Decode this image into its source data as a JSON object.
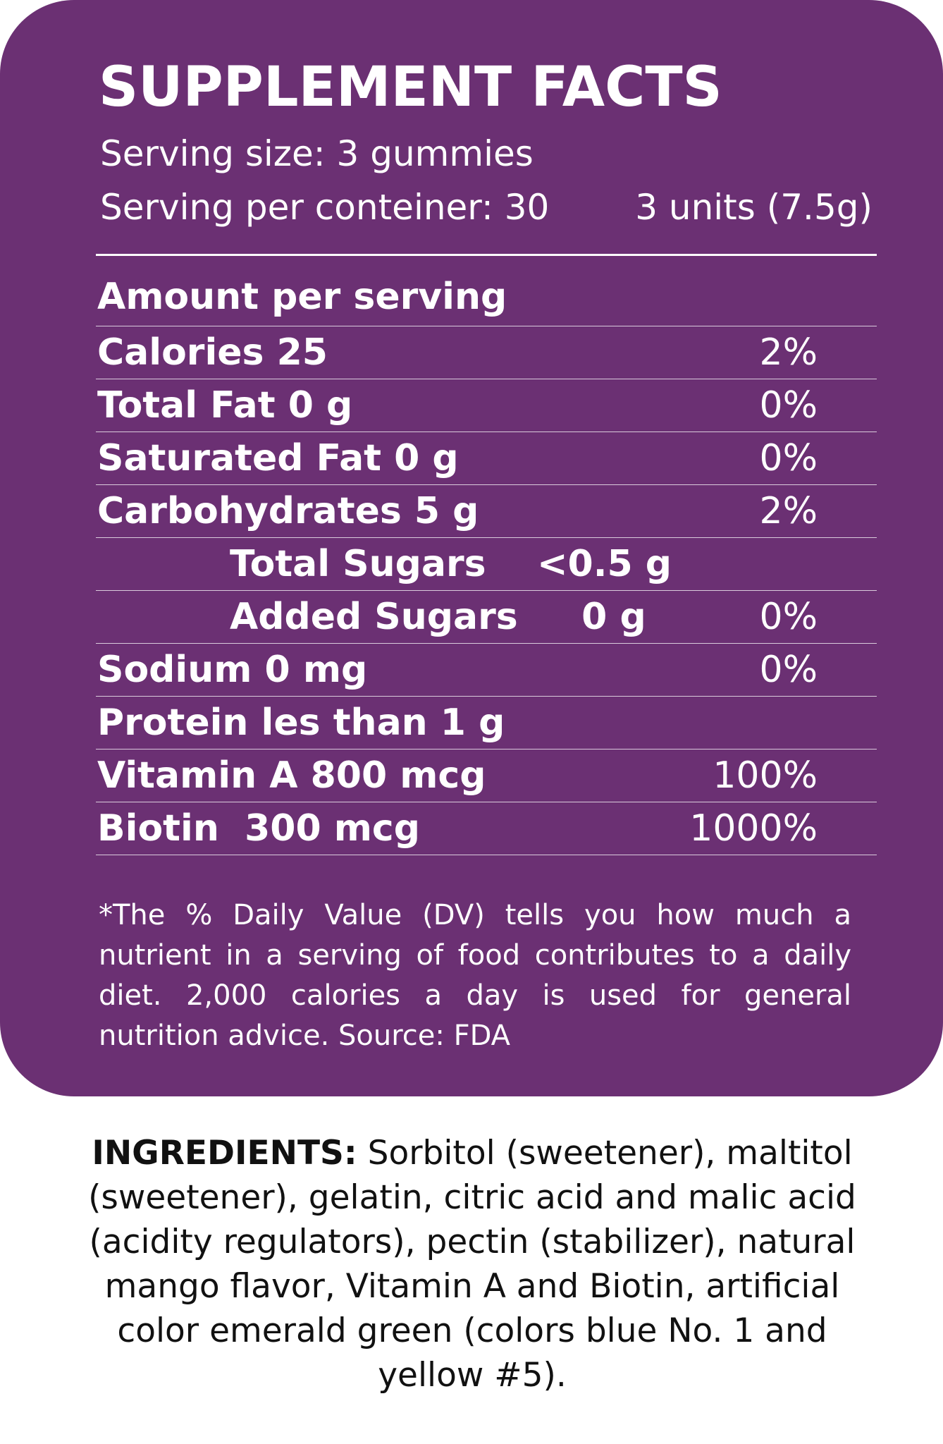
{
  "facts": {
    "title": "SUPPLEMENT FACTS",
    "serving_size": "Serving size: 3 gummies",
    "serving_per_container": "Serving per conteiner: 30",
    "serving_units": "3 units (7.5g)",
    "amount_header": "Amount per serving",
    "rows": [
      {
        "label": "Calories 25",
        "dv": "2%"
      },
      {
        "label": "Total Fat 0 g",
        "dv": "0%"
      },
      {
        "label": "Saturated Fat 0 g",
        "dv": "0%"
      },
      {
        "label": "Carbohydrates 5 g",
        "dv": "2%"
      },
      {
        "label": "Total Sugars    <0.5 g",
        "dv": ""
      },
      {
        "label": "Added Sugars     0 g",
        "dv": "0%"
      },
      {
        "label": "Sodium 0 mg",
        "dv": "0%"
      },
      {
        "label": "Protein les than 1 g",
        "dv": ""
      },
      {
        "label": "Vitamin A 800 mcg",
        "dv": "100%"
      },
      {
        "label": "Biotin  300 mcg",
        "dv": "1000%"
      }
    ],
    "footnote": "*The % Daily Value (DV) tells you how much a nutrient in a serving of food contributes to a daily diet. 2,000 calories a day is used for general nutrition advice. Source: FDA"
  },
  "ingredients": {
    "label": "INGREDIENTS:",
    "text": " Sorbitol (sweetener), maltitol (sweetener), gelatin, citric acid and malic acid (acidity regulators), pectin (stabilizer), natural mango flavor, Vitamin A and Biotin, artificial color emerald green (colors blue No. 1 and yellow #5)."
  },
  "colors": {
    "panel_background": "#6b3073",
    "panel_text": "#ffffff",
    "ingredients_text": "#111111"
  }
}
